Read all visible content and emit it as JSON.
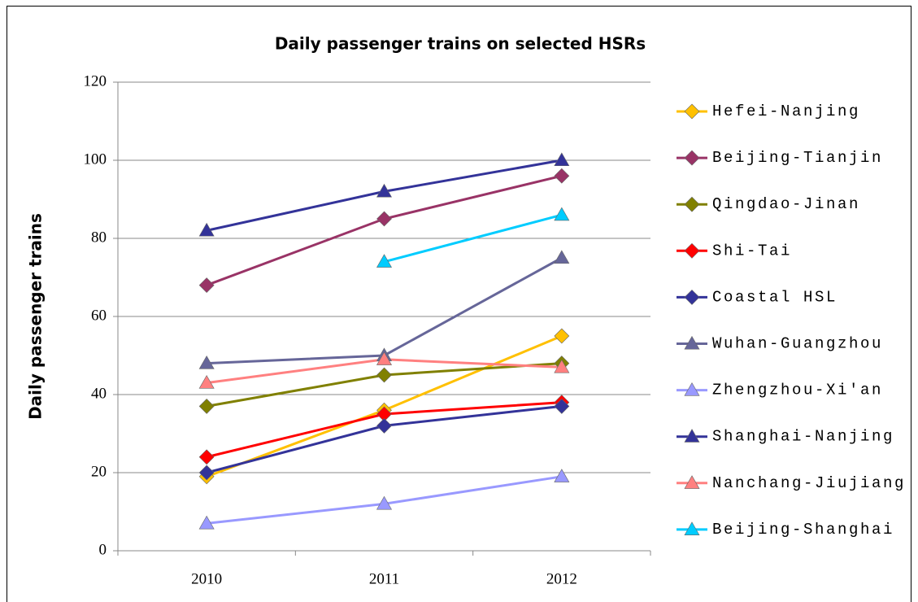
{
  "chart_data": {
    "type": "line",
    "title": "Daily passenger trains on selected HSRs",
    "y_label": "Daily passenger trains",
    "categories": [
      "2010",
      "2011",
      "2012"
    ],
    "ylim": [
      0,
      120
    ],
    "yticks": [
      0,
      20,
      40,
      60,
      80,
      100,
      120
    ],
    "grid": true,
    "legend": "right",
    "series": [
      {
        "name": "Hefei-Nanjing",
        "color": "#ffc000",
        "marker": "diamond",
        "values": [
          19,
          36,
          55
        ]
      },
      {
        "name": "Beijing-Tianjin",
        "color": "#993366",
        "marker": "diamond",
        "values": [
          68,
          85,
          96
        ]
      },
      {
        "name": "Qingdao-Jinan",
        "color": "#808000",
        "marker": "diamond",
        "values": [
          37,
          45,
          48
        ]
      },
      {
        "name": "Shi-Tai",
        "color": "#ff0000",
        "marker": "diamond",
        "values": [
          24,
          35,
          38
        ]
      },
      {
        "name": "Coastal HSL",
        "color": "#333399",
        "marker": "diamond",
        "values": [
          20,
          32,
          37
        ]
      },
      {
        "name": "Wuhan-Guangzhou",
        "color": "#666699",
        "marker": "triangle",
        "values": [
          48,
          50,
          75
        ]
      },
      {
        "name": "Zhengzhou-Xi'an",
        "color": "#9999ff",
        "marker": "triangle",
        "values": [
          7,
          12,
          19
        ]
      },
      {
        "name": "Shanghai-Nanjing",
        "color": "#333399",
        "marker": "triangle",
        "values": [
          82,
          92,
          100
        ]
      },
      {
        "name": "Nanchang-Jiujiang",
        "color": "#ff8080",
        "marker": "triangle",
        "values": [
          43,
          49,
          47
        ]
      },
      {
        "name": "Beijing-Shanghai",
        "color": "#00ccff",
        "marker": "triangle",
        "values": [
          null,
          74,
          86
        ]
      }
    ]
  }
}
